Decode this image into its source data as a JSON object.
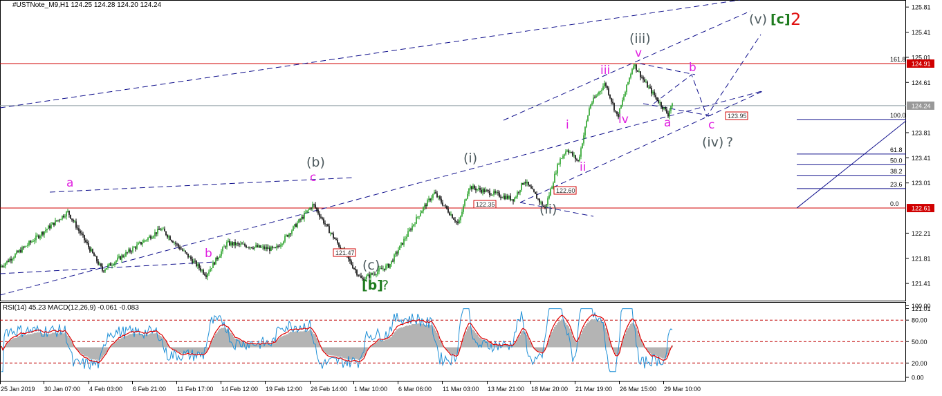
{
  "header": {
    "title": "#USTNote_M9,H1  124.25 124.28 124.20 124.24",
    "indicator": "RSI(14) 45.23 MACD(12,26,9) -0.061 -0.083"
  },
  "price_axis_labels": [
    "125.81",
    "125.41",
    "125.01",
    "124.91",
    "124.61",
    "124.24",
    "123.81",
    "123.41",
    "123.01",
    "122.61",
    "122.21",
    "121.81",
    "121.41",
    "121.01"
  ],
  "indicator_axis_labels": [
    "100.00",
    "80.00",
    "50.00",
    "20.00",
    "0.00"
  ],
  "time_axis_labels": [
    "25 Jan 2019",
    "30 Jan 07:00",
    "4 Feb 03:00",
    "6 Feb 21:00",
    "11 Feb 17:00",
    "14 Feb 12:00",
    "19 Feb 12:00",
    "26 Feb 14:00",
    "1 Mar 10:00",
    "6 Mar 06:00",
    "11 Mar 03:00",
    "13 Mar 21:00",
    "18 Mar 20:00",
    "21 Mar 19:00",
    "26 Mar 15:00",
    "29 Mar 10:00"
  ],
  "fib_labels": [
    "161.8",
    "100.0",
    "61.8",
    "50.0",
    "38.2",
    "23.6",
    "0.0"
  ],
  "price_boxes": [
    "124.91",
    "124.24",
    "122.61"
  ],
  "level_boxes": [
    "121.47",
    "122.35",
    "122.60",
    "123.95"
  ],
  "wave_labels": {
    "b_paren": "(b)",
    "c_paren": "(c)",
    "b_bracket": "[b]",
    "q1": "?",
    "i_paren": "(i)",
    "ii_paren": "(ii)",
    "iii_paren": "(iii)",
    "iv_paren": "(iv)",
    "q2": "?",
    "v_paren": "(v)",
    "c_bracket": "[c]",
    "two": "2",
    "a1": "a",
    "b1": "b",
    "c1": "c",
    "i": "i",
    "ii": "ii",
    "iii": "iii",
    "iv": "iv",
    "v": "v",
    "a2": "a",
    "b2": "b",
    "c2": "c"
  },
  "colors": {
    "up": "#23a023",
    "down": "#000000",
    "red": "#d00000",
    "blue": "#10108c",
    "rsi": "#1e8fd6",
    "signal": "#e00000",
    "hist": "#b4b4b4"
  },
  "chart_data": {
    "type": "candlestick",
    "symbol": "#USTNote_M9",
    "timeframe": "H1",
    "ohlc_last": {
      "open": 124.25,
      "high": 124.28,
      "low": 124.2,
      "close": 124.24
    },
    "price_path_anchors": [
      {
        "label": "start",
        "price": 121.65
      },
      {
        "label": "a",
        "price": 122.55
      },
      {
        "label": "b",
        "price": 121.55
      },
      {
        "label": "c / (b)",
        "price": 122.67
      },
      {
        "label": "(c)",
        "price": 121.47
      },
      {
        "label": "(i)",
        "price": 122.95
      },
      {
        "label": "(ii)",
        "price": 122.6
      },
      {
        "label": "i",
        "price": 123.55
      },
      {
        "label": "ii",
        "price": 123.35
      },
      {
        "label": "iii",
        "price": 124.6
      },
      {
        "label": "iv",
        "price": 124.05
      },
      {
        "label": "v / (iii)",
        "price": 124.91
      },
      {
        "label": "a",
        "price": 124.1
      },
      {
        "label": "last",
        "price": 124.24
      }
    ],
    "projection": [
      {
        "label": "b",
        "price": 124.7
      },
      {
        "label": "c",
        "price": 123.95
      },
      {
        "label": "(v)",
        "price": 125.5
      }
    ],
    "horizontal_levels": [
      124.91,
      124.24,
      122.61
    ],
    "fibonacci": [
      {
        "ratio": "161.8",
        "price": 124.91
      },
      {
        "ratio": "100.0",
        "price": 124.02
      },
      {
        "ratio": "61.8",
        "price": 123.47
      },
      {
        "ratio": "50.0",
        "price": 123.3
      },
      {
        "ratio": "38.2",
        "price": 123.13
      },
      {
        "ratio": "23.6",
        "price": 122.92
      },
      {
        "ratio": "0.0",
        "price": 122.61
      }
    ],
    "rsi": {
      "period": 14,
      "last": 45.23,
      "levels": [
        80,
        50,
        20
      ]
    },
    "macd": {
      "fast": 12,
      "slow": 26,
      "signal": 9,
      "macd_last": -0.061,
      "signal_last": -0.083
    },
    "ylim": [
      120.85,
      126.0
    ]
  }
}
